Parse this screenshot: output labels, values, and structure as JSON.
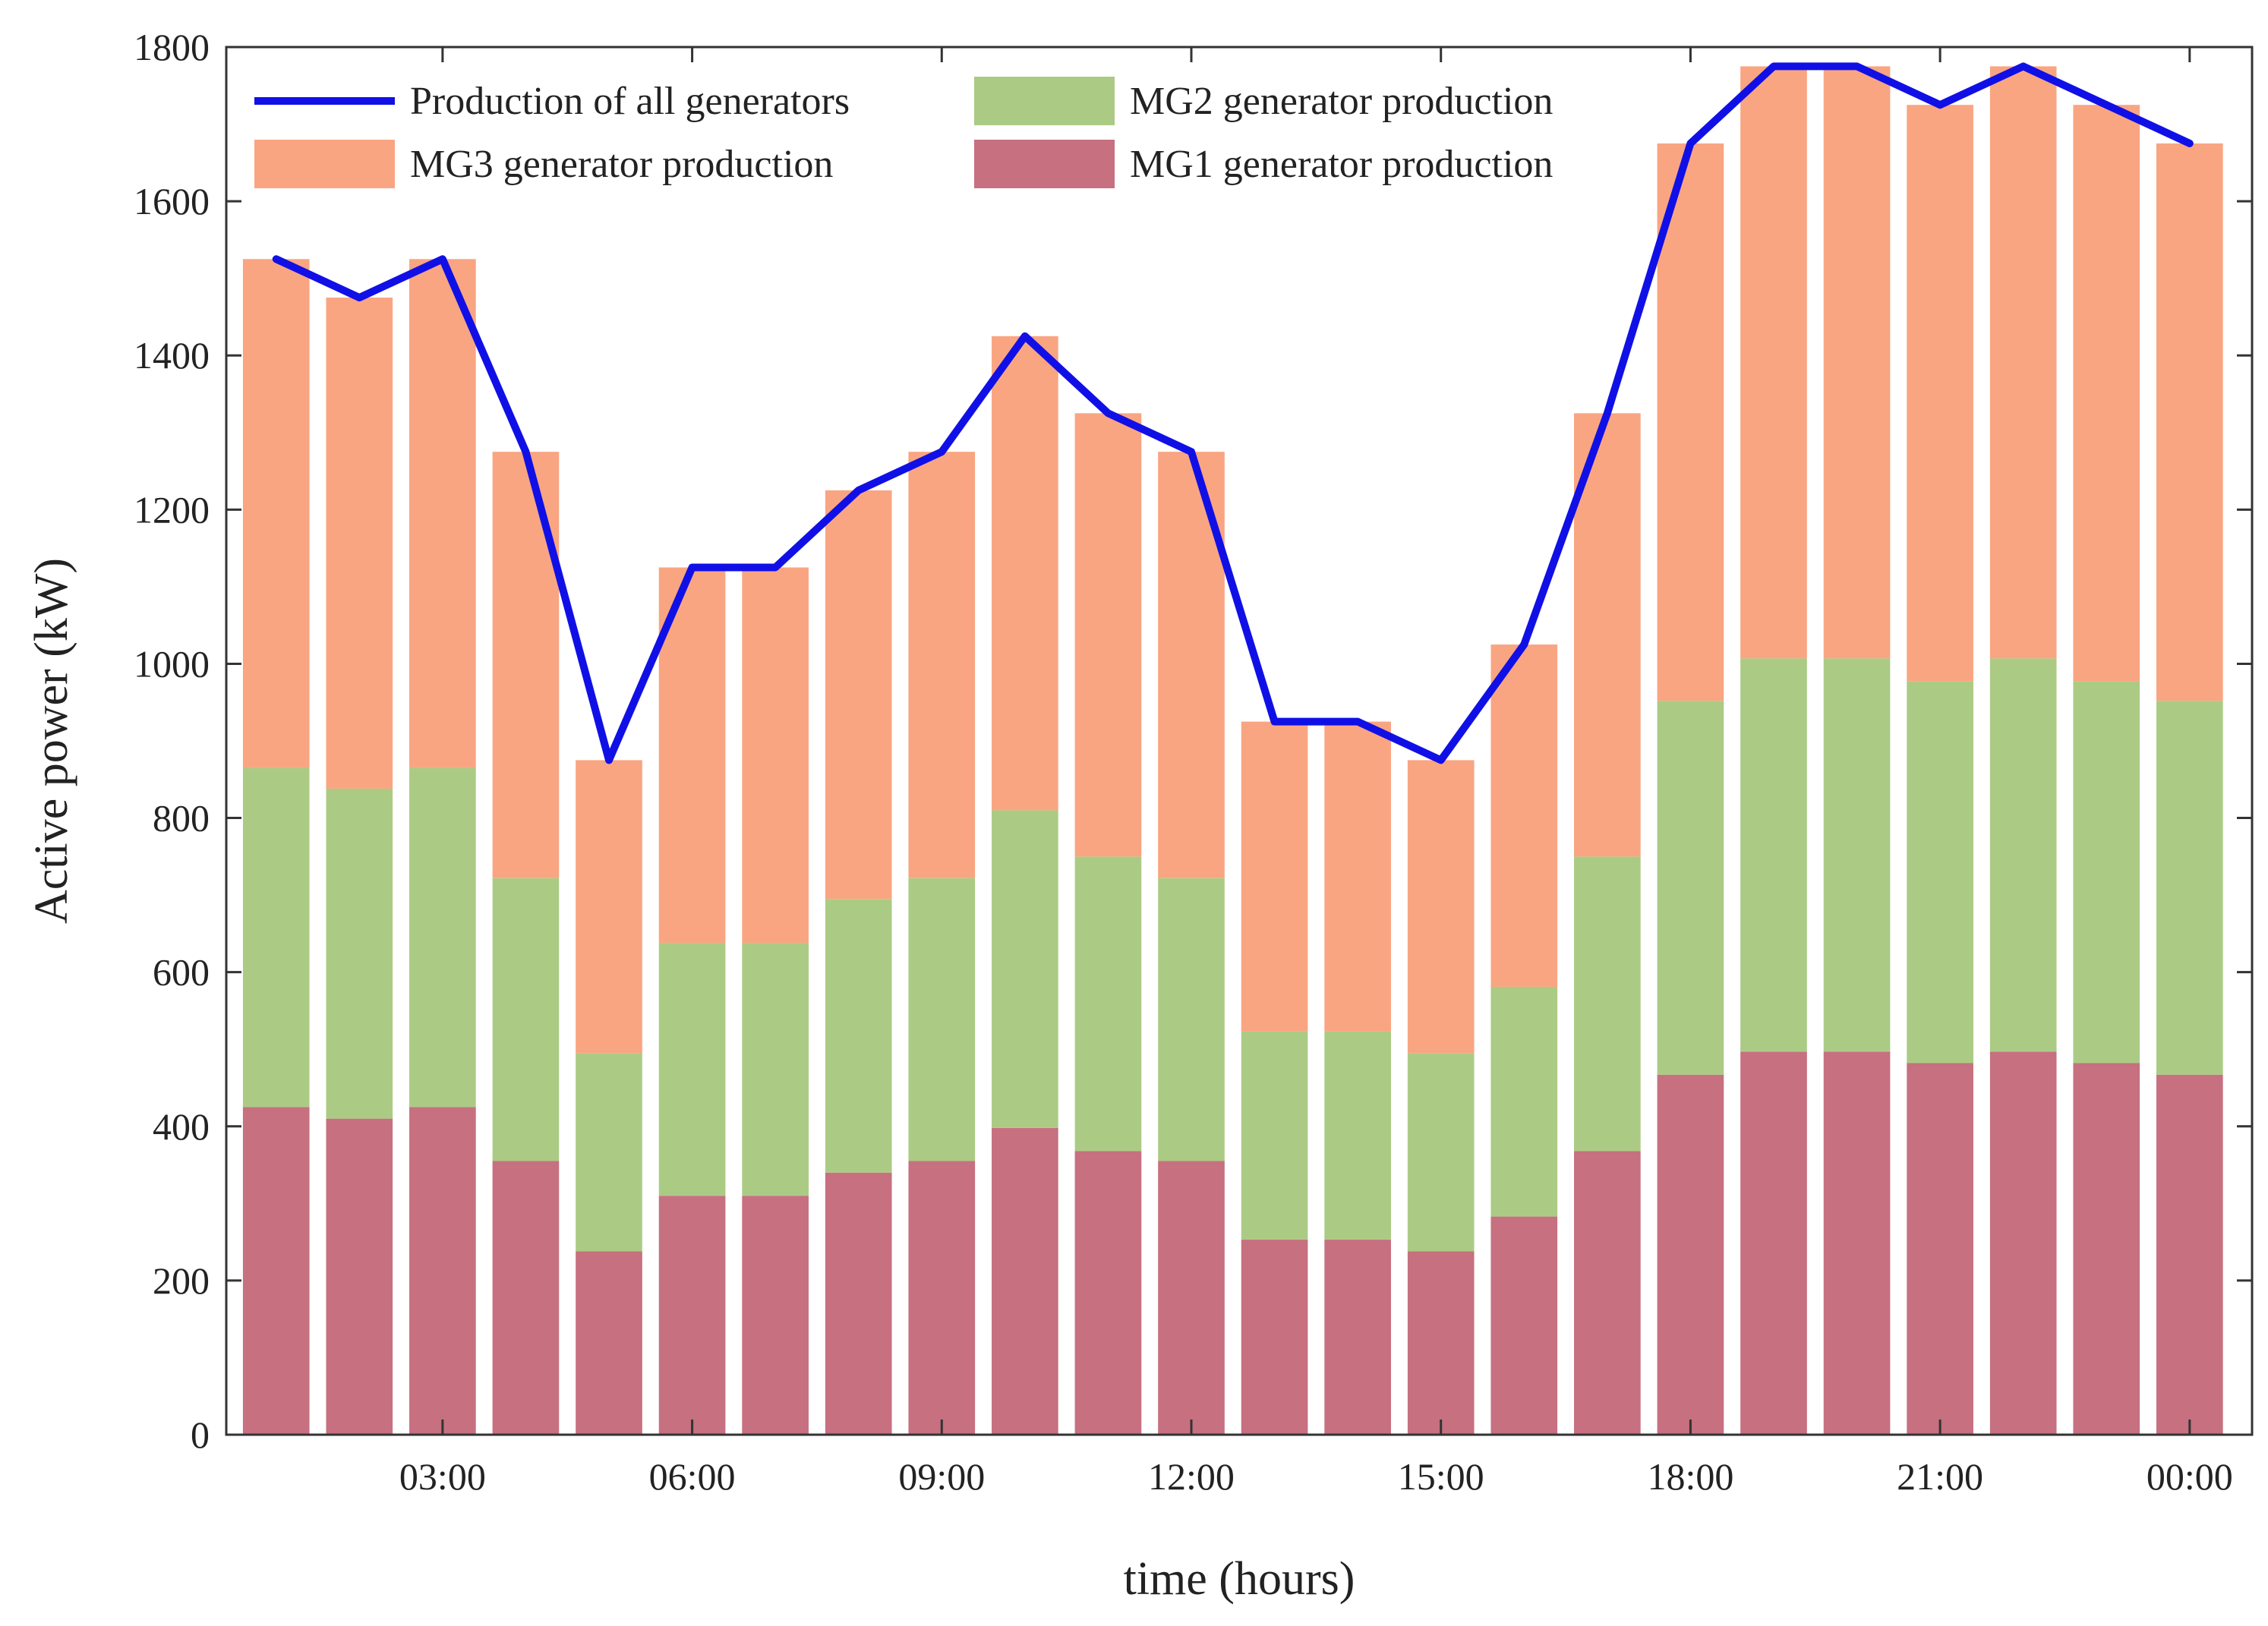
{
  "chart_data": {
    "type": "bar",
    "stacked": true,
    "title": "",
    "xlabel": "time (hours)",
    "ylabel": "Active power (kW)",
    "ylim": [
      0,
      1800
    ],
    "yticks": [
      0,
      200,
      400,
      600,
      800,
      1000,
      1200,
      1400,
      1600,
      1800
    ],
    "hours": [
      1,
      2,
      3,
      4,
      5,
      6,
      7,
      8,
      9,
      10,
      11,
      12,
      13,
      14,
      15,
      16,
      17,
      18,
      19,
      20,
      21,
      22,
      23,
      24
    ],
    "xtick_hours": [
      3,
      6,
      9,
      12,
      15,
      18,
      21,
      24
    ],
    "xtick_labels": [
      "03:00",
      "06:00",
      "09:00",
      "12:00",
      "15:00",
      "18:00",
      "21:00",
      "00:00"
    ],
    "grid": false,
    "legend_position": "top-left",
    "series": [
      {
        "name": "MG1 generator production",
        "kind": "bar",
        "color": "#c67080",
        "values": [
          425,
          410,
          425,
          355,
          238,
          310,
          310,
          340,
          355,
          398,
          368,
          355,
          253,
          253,
          238,
          283,
          368,
          467,
          497,
          497,
          482,
          497,
          482,
          467
        ]
      },
      {
        "name": "MG2 generator production",
        "kind": "bar",
        "color": "#abcb85",
        "values": [
          440,
          428,
          440,
          367,
          257,
          328,
          328,
          355,
          367,
          412,
          382,
          367,
          270,
          270,
          257,
          298,
          382,
          485,
          510,
          510,
          495,
          510,
          495,
          485
        ]
      },
      {
        "name": "MG3 generator production",
        "kind": "bar",
        "color": "#f9a582",
        "values": [
          660,
          637,
          660,
          553,
          380,
          487,
          487,
          530,
          553,
          615,
          575,
          553,
          402,
          402,
          380,
          444,
          575,
          723,
          768,
          768,
          748,
          768,
          748,
          723
        ]
      },
      {
        "name": "Production of all generators",
        "kind": "line",
        "color": "#1010e6",
        "values": [
          1525,
          1475,
          1525,
          1275,
          875,
          1125,
          1125,
          1225,
          1275,
          1425,
          1325,
          1275,
          925,
          925,
          875,
          1025,
          1325,
          1675,
          1775,
          1775,
          1725,
          1775,
          1725,
          1675
        ]
      }
    ],
    "legend": [
      {
        "label": "Production of all generators",
        "kind": "line",
        "color": "#1010e6"
      },
      {
        "label": "MG2 generator production",
        "kind": "patch",
        "color": "#abcb85"
      },
      {
        "label": "MG3 generator production",
        "kind": "patch",
        "color": "#f9a582"
      },
      {
        "label": "MG1 generator production",
        "kind": "patch",
        "color": "#c67080"
      }
    ]
  }
}
